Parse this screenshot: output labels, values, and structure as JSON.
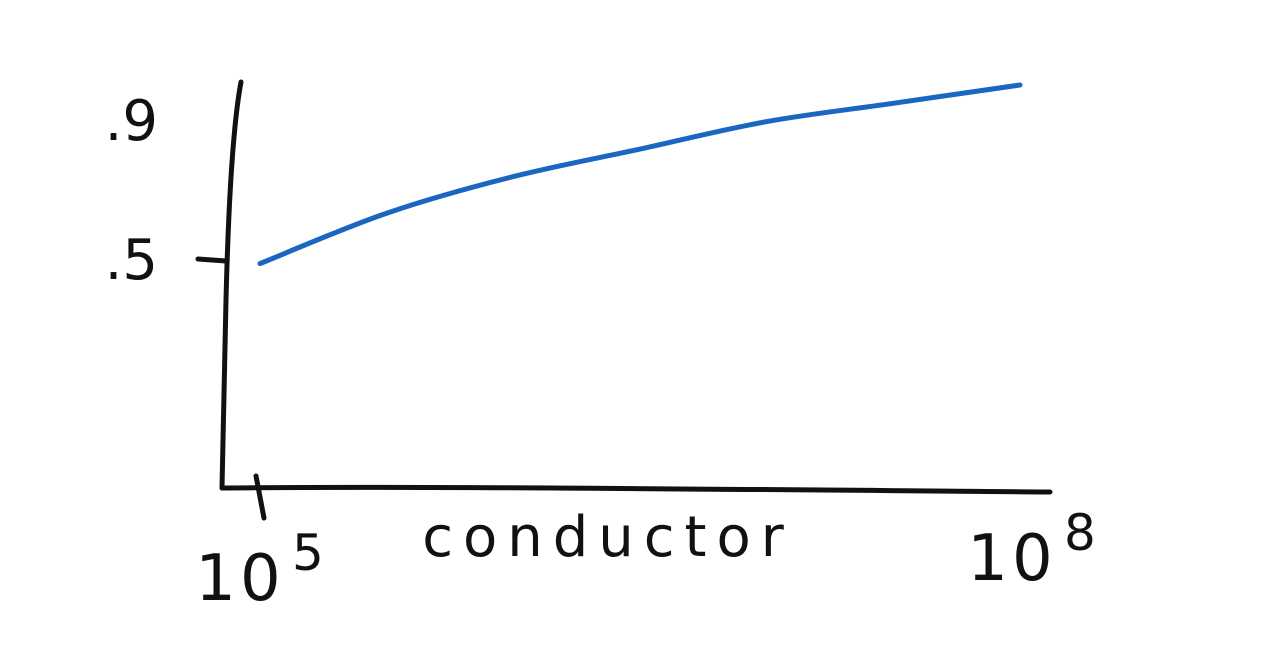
{
  "chart_data": {
    "type": "line",
    "title": "",
    "xlabel": "conductor",
    "ylabel": "",
    "x_scale": "log",
    "x_ticks": [
      {
        "value": 100000,
        "label_base": "10",
        "label_exp": "5"
      },
      {
        "value": 100000000,
        "label_base": "10",
        "label_exp": "8"
      }
    ],
    "y_ticks": [
      {
        "value": 0.5,
        "label": ".5"
      },
      {
        "value": 0.9,
        "label": ".9"
      }
    ],
    "xlim": [
      100000,
      100000000
    ],
    "ylim": [
      0,
      1
    ],
    "grid": false,
    "legend": "none",
    "series": [
      {
        "color": "#1a66c0",
        "x": [
          100000,
          316228,
          1000000,
          3162278,
          10000000,
          31622777,
          100000000
        ],
        "y": [
          0.49,
          0.6,
          0.68,
          0.74,
          0.8,
          0.84,
          0.88
        ]
      }
    ]
  }
}
